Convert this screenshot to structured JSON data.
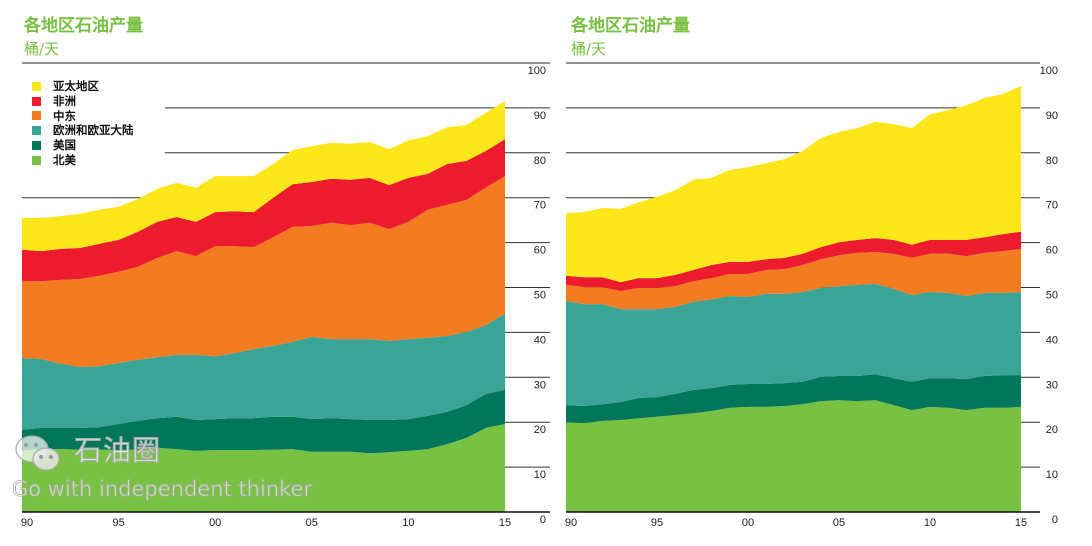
{
  "chart_data": [
    {
      "type": "area",
      "stacking": "cumulative (values are top edge of each stacked layer)",
      "title": "各地区石油产量",
      "ylabel": "桶/天",
      "ylim": [
        0,
        100
      ],
      "yticks": [
        "100",
        "90",
        "80",
        "70",
        "60",
        "50",
        "40",
        "30",
        "20",
        "10",
        "0"
      ],
      "xtick_labels": [
        "90",
        "95",
        "00",
        "05",
        "10",
        "15"
      ],
      "x": [
        1990,
        1991,
        1992,
        1993,
        1994,
        1995,
        1996,
        1997,
        1998,
        1999,
        2000,
        2001,
        2002,
        2003,
        2004,
        2005,
        2006,
        2007,
        2008,
        2009,
        2010,
        2011,
        2012,
        2013,
        2014,
        2015
      ],
      "legend_position": "top-left",
      "series": [
        {
          "name": "北美",
          "color": "#79c142",
          "values": [
            13.6,
            14.0,
            14.0,
            13.9,
            13.9,
            13.8,
            13.9,
            14.3,
            14.0,
            13.6,
            13.8,
            13.8,
            13.8,
            13.9,
            14.0,
            13.4,
            13.4,
            13.4,
            13.1,
            13.3,
            13.6,
            14.0,
            15.1,
            16.5,
            18.7,
            19.6
          ]
        },
        {
          "name": "美国",
          "color": "#00765a",
          "values": [
            18.3,
            18.7,
            18.7,
            18.7,
            18.9,
            19.6,
            20.3,
            20.9,
            21.2,
            20.5,
            20.7,
            20.9,
            20.9,
            21.2,
            21.2,
            20.7,
            20.9,
            20.7,
            20.5,
            20.5,
            20.7,
            21.4,
            22.3,
            23.8,
            26.3,
            27.2
          ]
        },
        {
          "name": "欧洲和欧亚大陆",
          "color": "#3aa597",
          "values": [
            34.3,
            34.1,
            33.0,
            32.3,
            32.5,
            33.2,
            33.9,
            34.5,
            35.0,
            35.0,
            34.7,
            35.4,
            36.3,
            37.0,
            37.9,
            39.0,
            38.5,
            38.5,
            38.5,
            38.1,
            38.5,
            38.8,
            39.2,
            40.1,
            41.6,
            44.2
          ]
        },
        {
          "name": "中东",
          "color": "#f47b20",
          "values": [
            51.4,
            51.4,
            51.7,
            51.9,
            52.6,
            53.5,
            54.6,
            56.6,
            58.1,
            57.0,
            59.2,
            59.2,
            59.0,
            61.2,
            63.5,
            63.7,
            64.4,
            63.9,
            64.4,
            63.0,
            64.6,
            67.3,
            68.4,
            69.5,
            72.2,
            74.8
          ]
        },
        {
          "name": "非洲",
          "color": "#ec1c2e",
          "values": [
            58.4,
            58.1,
            58.6,
            58.8,
            59.7,
            60.6,
            62.4,
            64.6,
            65.7,
            64.6,
            66.8,
            67.0,
            66.8,
            70.0,
            73.0,
            73.5,
            74.2,
            74.0,
            74.4,
            72.8,
            74.4,
            75.3,
            77.5,
            78.2,
            80.4,
            83.0
          ]
        },
        {
          "name": "亚太地区",
          "color": "#fde619",
          "values": [
            65.5,
            65.5,
            65.9,
            66.4,
            67.3,
            68.0,
            69.7,
            72.0,
            73.3,
            72.2,
            74.8,
            74.8,
            74.8,
            77.5,
            80.6,
            81.5,
            82.2,
            82.0,
            82.4,
            80.8,
            82.8,
            83.7,
            85.7,
            86.2,
            88.9,
            91.5
          ]
        }
      ]
    },
    {
      "type": "area",
      "stacking": "cumulative (values are top edge of each stacked layer)",
      "title": "各地区石油产量",
      "ylabel": "桶/天",
      "ylim": [
        0,
        100
      ],
      "yticks": [
        "100",
        "90",
        "80",
        "70",
        "60",
        "50",
        "40",
        "30",
        "20",
        "10",
        "0"
      ],
      "xtick_labels": [
        "90",
        "95",
        "00",
        "05",
        "10",
        "15"
      ],
      "x": [
        1990,
        1991,
        1992,
        1993,
        1994,
        1995,
        1996,
        1997,
        1998,
        1999,
        2000,
        2001,
        2002,
        2003,
        2004,
        2005,
        2006,
        2007,
        2008,
        2009,
        2010,
        2011,
        2012,
        2013,
        2014,
        2015
      ],
      "series": [
        {
          "name": "北美",
          "color": "#79c142",
          "values": [
            20.0,
            19.8,
            20.3,
            20.5,
            20.9,
            21.2,
            21.6,
            22.0,
            22.5,
            23.2,
            23.4,
            23.4,
            23.6,
            24.0,
            24.7,
            24.9,
            24.7,
            24.9,
            23.8,
            22.7,
            23.4,
            23.2,
            22.7,
            23.2,
            23.2,
            23.4
          ]
        },
        {
          "name": "美国",
          "color": "#00765a",
          "values": [
            23.8,
            23.6,
            24.0,
            24.5,
            25.4,
            25.6,
            26.3,
            27.2,
            27.6,
            28.3,
            28.5,
            28.5,
            28.7,
            29.0,
            30.1,
            30.3,
            30.3,
            30.7,
            29.8,
            29.0,
            29.8,
            29.8,
            29.6,
            30.3,
            30.5,
            30.5
          ]
        },
        {
          "name": "欧洲和欧亚大陆",
          "color": "#3aa597",
          "values": [
            47.0,
            46.3,
            46.3,
            45.2,
            45.2,
            45.2,
            45.7,
            46.8,
            47.4,
            48.1,
            47.9,
            48.6,
            48.6,
            49.0,
            49.9,
            50.3,
            50.6,
            50.8,
            49.7,
            48.3,
            49.0,
            48.8,
            48.1,
            48.8,
            48.8,
            49.0
          ]
        },
        {
          "name": "中东",
          "color": "#f47b20",
          "values": [
            50.6,
            50.1,
            50.1,
            49.2,
            49.9,
            49.9,
            50.3,
            51.4,
            52.1,
            53.0,
            53.0,
            53.9,
            54.1,
            55.0,
            56.3,
            57.2,
            57.7,
            57.9,
            57.5,
            56.6,
            57.5,
            57.5,
            57.0,
            57.7,
            58.1,
            58.6
          ]
        },
        {
          "name": "非洲",
          "color": "#ec1c2e",
          "values": [
            52.6,
            52.3,
            52.3,
            51.2,
            52.1,
            52.1,
            52.8,
            53.9,
            55.0,
            55.7,
            55.7,
            56.3,
            56.6,
            57.5,
            59.0,
            60.1,
            60.6,
            61.0,
            60.6,
            59.5,
            60.6,
            60.6,
            60.6,
            61.2,
            61.9,
            62.4
          ]
        },
        {
          "name": "亚太地区",
          "color": "#fde619",
          "values": [
            66.6,
            66.8,
            67.7,
            67.5,
            69.0,
            70.2,
            71.7,
            74.0,
            74.4,
            76.2,
            76.8,
            77.7,
            78.6,
            80.4,
            83.3,
            84.6,
            85.5,
            86.9,
            86.4,
            85.5,
            88.6,
            89.5,
            90.6,
            92.2,
            93.1,
            94.9
          ]
        }
      ]
    }
  ],
  "legend": [
    {
      "label": "亚太地区",
      "color": "#fde619"
    },
    {
      "label": "非洲",
      "color": "#ec1c2e"
    },
    {
      "label": "中东",
      "color": "#f47b20"
    },
    {
      "label": "欧洲和欧亚大陆",
      "color": "#3aa597"
    },
    {
      "label": "美国",
      "color": "#00765a"
    },
    {
      "label": "北美",
      "color": "#79c142"
    }
  ],
  "watermark": {
    "logo_text": "石油圈",
    "slogan": "Go with independent thinker"
  }
}
